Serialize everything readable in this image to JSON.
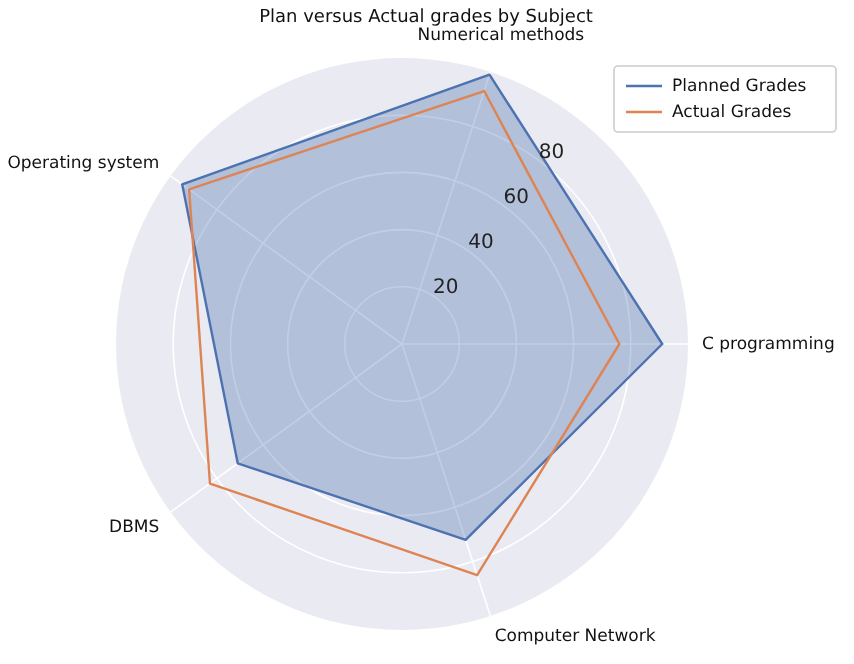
{
  "chart_data": {
    "type": "radar",
    "title": "Plan versus Actual grades by Subject",
    "categories": [
      "Numerical methods",
      "C programming",
      "Computer Network",
      "DBMS",
      "Operating system"
    ],
    "series": [
      {
        "name": "Planned Grades",
        "color": "#4c72b0",
        "values": [
          99,
          91,
          72,
          71,
          95
        ]
      },
      {
        "name": "Actual Grades",
        "color": "#dd8452",
        "values": [
          93,
          76,
          85,
          83,
          92
        ]
      }
    ],
    "ylim": [
      0,
      100
    ],
    "yticks": [
      20,
      40,
      60,
      80
    ],
    "grid": true,
    "legend": "top right"
  }
}
